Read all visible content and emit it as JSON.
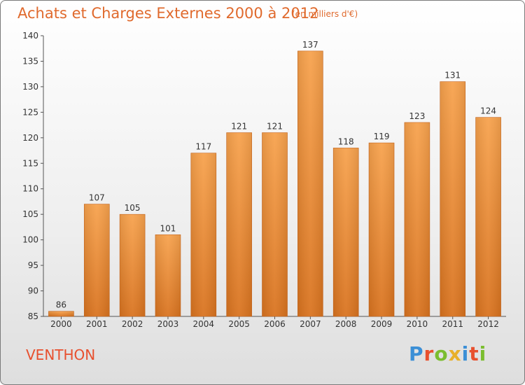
{
  "header": {
    "title": "Achats et Charges Externes 2000 à 2012",
    "subtitle": "(en milliers d'€)"
  },
  "footer": {
    "place": "VENTHON",
    "logo": "Proxiti"
  },
  "colors": {
    "bar_top": "#f7a24d",
    "bar_bottom": "#d9731f",
    "title": "#e06a2d"
  },
  "chart_data": {
    "type": "bar",
    "title": "Achats et Charges Externes 2000 à 2012",
    "subtitle": "(en milliers d'€)",
    "xlabel": "",
    "ylabel": "",
    "categories": [
      "2000",
      "2001",
      "2002",
      "2003",
      "2004",
      "2005",
      "2006",
      "2007",
      "2008",
      "2009",
      "2010",
      "2011",
      "2012"
    ],
    "values": [
      86,
      107,
      105,
      101,
      117,
      121,
      121,
      137,
      118,
      119,
      123,
      131,
      124
    ],
    "ylim": [
      85,
      140
    ],
    "yticks": [
      85,
      90,
      95,
      100,
      105,
      110,
      115,
      120,
      125,
      130,
      135,
      140
    ],
    "grid": false,
    "legend": "none"
  }
}
